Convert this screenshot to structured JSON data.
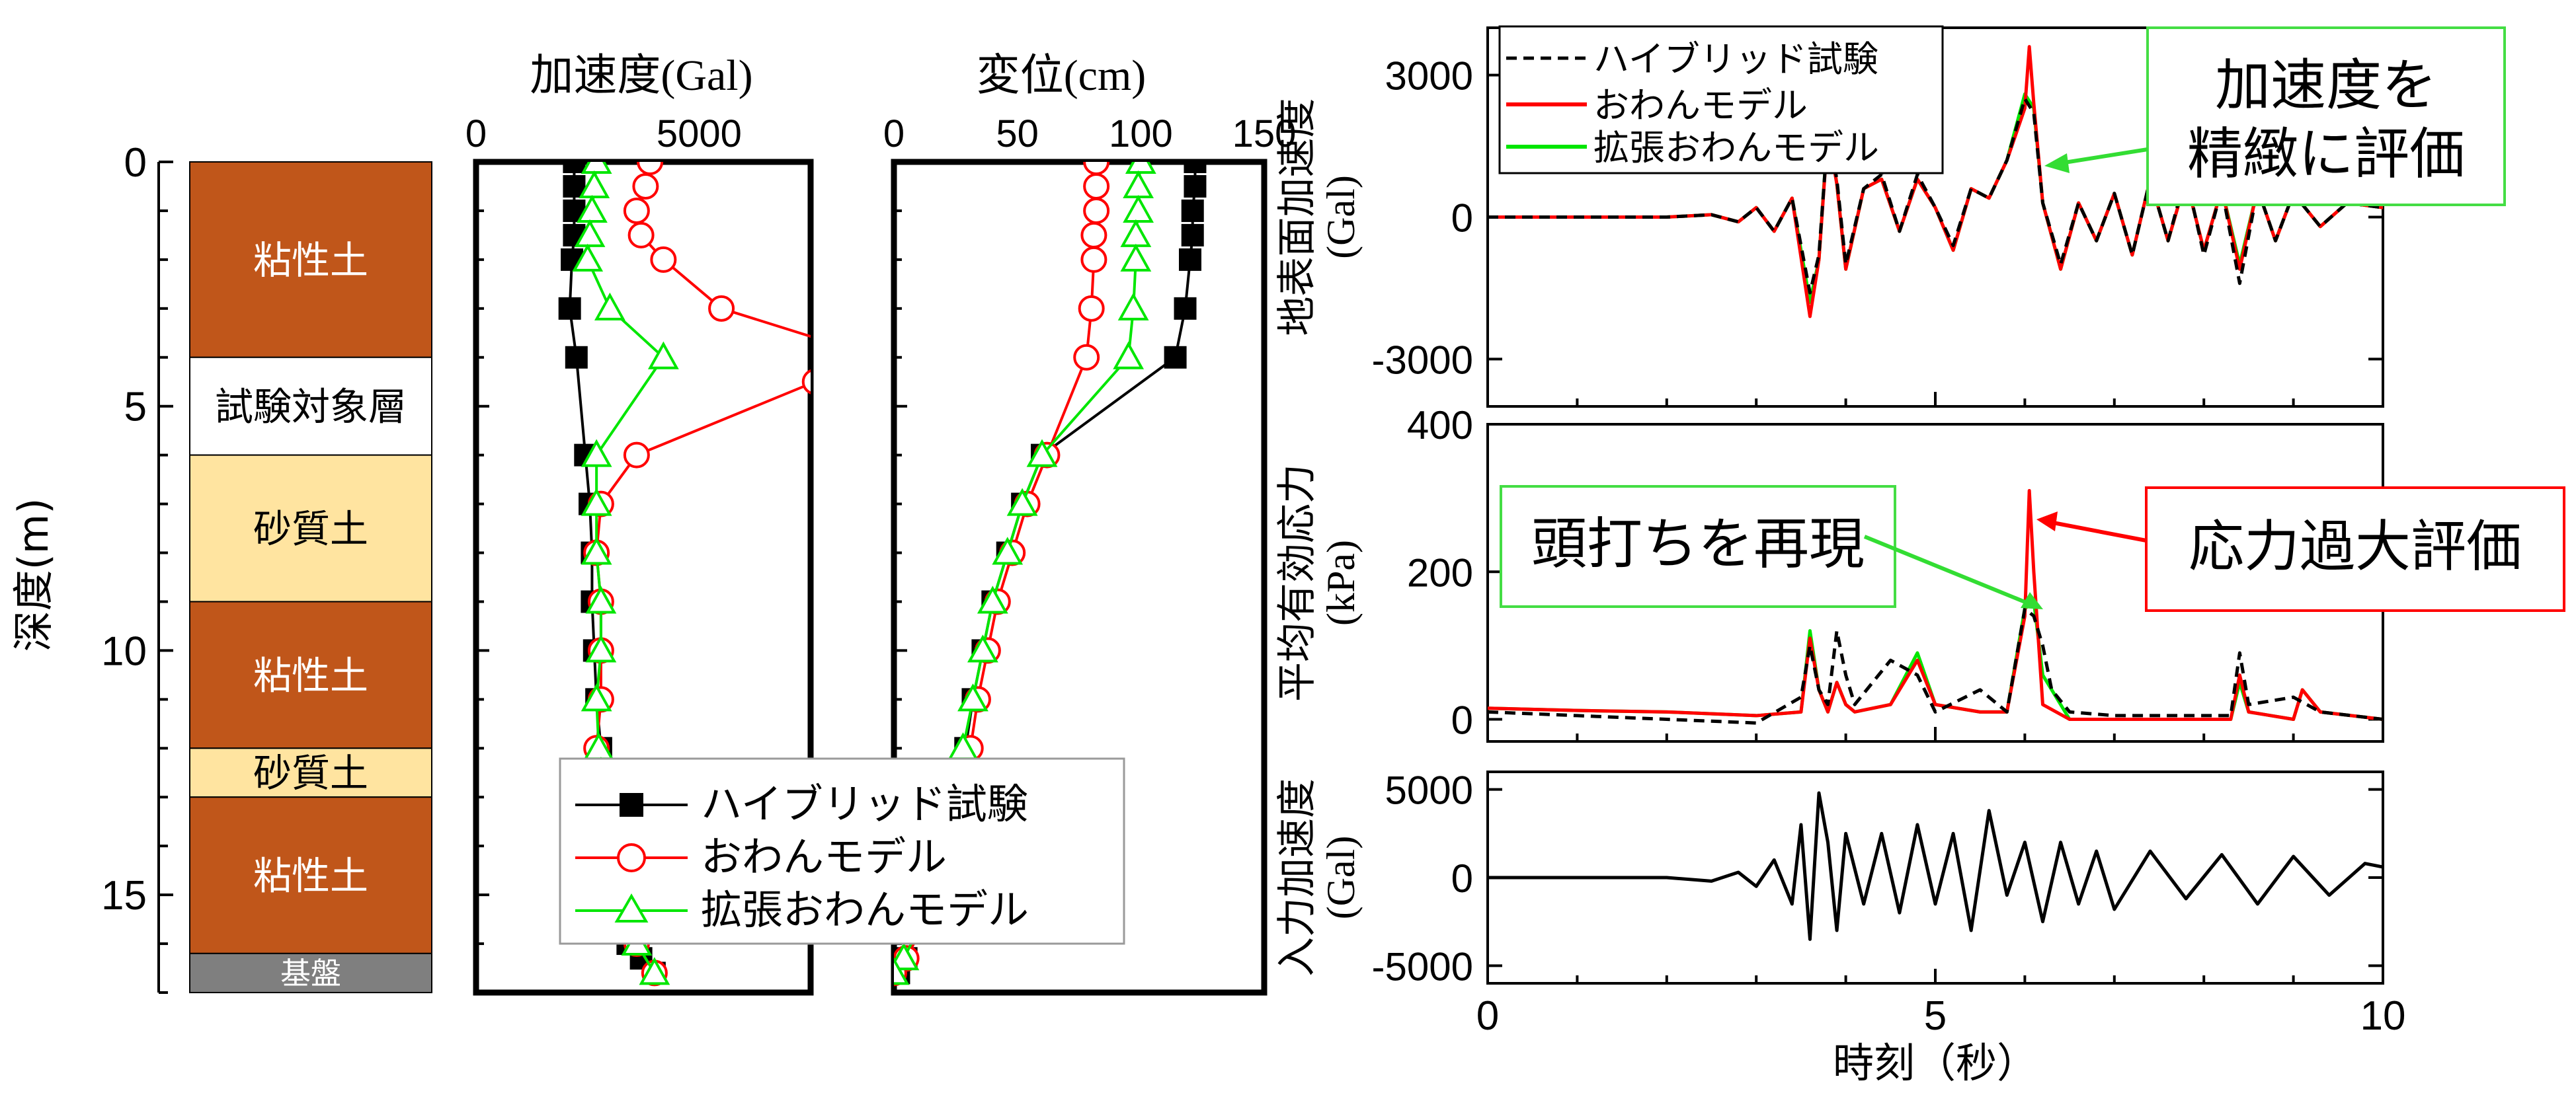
{
  "colors": {
    "hybrid": "#000000",
    "owan": "#ff0000",
    "extended": "#00e600",
    "clay": "#c0561a",
    "sand": "#ffe4a0",
    "target": "#ffffff",
    "base": "#7f7f7f",
    "callout_green_border": "#33dd33",
    "callout_red_border": "#ff0000"
  },
  "profile": {
    "depth_label": "深度(m)",
    "depth_ticks": [
      "0",
      "5",
      "10",
      "15"
    ],
    "layers": [
      {
        "name": "粘性土",
        "top": 0,
        "bottom": 4,
        "color": "#c0561a",
        "text_color": "#ffffff"
      },
      {
        "name": "試験対象層",
        "top": 4,
        "bottom": 6,
        "color": "#ffffff",
        "text_color": "#000000"
      },
      {
        "name": "砂質土",
        "top": 6,
        "bottom": 9,
        "color": "#ffe4a0",
        "text_color": "#000000"
      },
      {
        "name": "粘性土",
        "top": 9,
        "bottom": 12,
        "color": "#c0561a",
        "text_color": "#ffffff"
      },
      {
        "name": "砂質土",
        "top": 12,
        "bottom": 13,
        "color": "#ffe4a0",
        "text_color": "#000000"
      },
      {
        "name": "粘性土",
        "top": 13,
        "bottom": 16.2,
        "color": "#c0561a",
        "text_color": "#ffffff"
      },
      {
        "name": "基盤",
        "top": 16.2,
        "bottom": 17,
        "color": "#7f7f7f",
        "text_color": "#ffffff"
      }
    ]
  },
  "legend_main": {
    "hybrid": "ハイブリッド試験",
    "owan": "おわんモデル",
    "extended": "拡張おわんモデル"
  },
  "legend_top": {
    "hybrid": "ハイブリッド試験",
    "owan": "おわんモデル",
    "extended": "拡張おわんモデル"
  },
  "callouts": {
    "accel": "加速度を\n精緻に評価",
    "peak": "頭打ちを再現",
    "over": "応力過大評価"
  },
  "chart_data": [
    {
      "type": "line",
      "id": "accel_profile",
      "title": "加速度(Gal)",
      "xlabel": "加速度(Gal)",
      "ylabel": "深度(m)",
      "xlim": [
        0,
        7500
      ],
      "ylim": [
        17,
        0
      ],
      "xticks": [
        "0",
        "5000"
      ],
      "yticks": [
        0,
        5,
        10,
        15
      ],
      "series": [
        {
          "name": "ハイブリッド試験",
          "key": "hybrid",
          "marker": "square",
          "x": [
            2200,
            2200,
            2200,
            2200,
            2150,
            2100,
            2250,
            2450,
            2550,
            2600,
            2600,
            2650,
            2700,
            2800,
            2900,
            2950,
            3000,
            3100,
            3200,
            3200,
            3300,
            3400,
            3700,
            4000
          ],
          "y": [
            0,
            0.5,
            1,
            1.5,
            2,
            3,
            4,
            6,
            7,
            8,
            9,
            10,
            11,
            12,
            12.5,
            13,
            13.5,
            14,
            14.5,
            15,
            15.5,
            16,
            16.3,
            16.6
          ]
        },
        {
          "name": "おわんモデル",
          "key": "owan",
          "marker": "circle",
          "x": [
            3900,
            3800,
            3600,
            3700,
            4200,
            5500,
            7600,
            7600,
            3600,
            2800,
            2700,
            2800,
            2800,
            2800,
            2700,
            2750,
            2800,
            2900,
            3000,
            3050,
            3150,
            3300,
            3600,
            4000
          ],
          "y": [
            0,
            0.5,
            1,
            1.5,
            2,
            3,
            3.6,
            4.5,
            6,
            7,
            8,
            9,
            10,
            11,
            12,
            12.5,
            13,
            13.5,
            14,
            14.5,
            15,
            15.5,
            16,
            16.6
          ]
        },
        {
          "name": "拡張おわんモデル",
          "key": "extended",
          "marker": "triangle",
          "x": [
            2700,
            2650,
            2600,
            2550,
            2500,
            3000,
            4200,
            2700,
            2700,
            2700,
            2800,
            2800,
            2700,
            2750,
            2800,
            2900,
            3000,
            3050,
            3150,
            3300,
            3600,
            4000
          ],
          "y": [
            0,
            0.5,
            1,
            1.5,
            2,
            3,
            4,
            6,
            7,
            8,
            9,
            10,
            11,
            12,
            12.5,
            13,
            13.5,
            14,
            14.5,
            15,
            16,
            16.6
          ]
        }
      ]
    },
    {
      "type": "line",
      "id": "disp_profile",
      "title": "変位(cm)",
      "xlabel": "変位(cm)",
      "ylabel": "深度(m)",
      "xlim": [
        0,
        150
      ],
      "ylim": [
        17,
        0
      ],
      "xticks": [
        "0",
        "50",
        "100",
        "150"
      ],
      "yticks": [
        0,
        5,
        10,
        15
      ],
      "series": [
        {
          "name": "ハイブリッド試験",
          "key": "hybrid",
          "marker": "square",
          "x": [
            122,
            122,
            121,
            121,
            120,
            118,
            114,
            60,
            52,
            46,
            40,
            36,
            32,
            29,
            25,
            20,
            15,
            10,
            5,
            2
          ],
          "y": [
            0,
            0.5,
            1,
            1.5,
            2,
            3,
            4,
            6,
            7,
            8,
            9,
            10,
            11,
            12,
            13,
            14,
            15,
            15.8,
            16.3,
            16.6
          ]
        },
        {
          "name": "おわんモデル",
          "key": "owan",
          "marker": "circle",
          "x": [
            82,
            82,
            82,
            81,
            81,
            80,
            78,
            62,
            54,
            48,
            42,
            38,
            34,
            31,
            26,
            21,
            15,
            10,
            5,
            0
          ],
          "y": [
            0,
            0.5,
            1,
            1.5,
            2,
            3,
            4,
            6,
            7,
            8,
            9,
            10,
            11,
            12,
            13,
            14,
            15,
            15.8,
            16.3,
            16.6
          ]
        },
        {
          "name": "拡張おわんモデル",
          "key": "extended",
          "marker": "triangle",
          "x": [
            100,
            99,
            99,
            98,
            98,
            97,
            95,
            60,
            52,
            46,
            40,
            36,
            32,
            28,
            24,
            19,
            14,
            9,
            4,
            0
          ],
          "y": [
            0,
            0.5,
            1,
            1.5,
            2,
            3,
            4,
            6,
            7,
            8,
            9,
            10,
            11,
            12,
            13,
            14,
            15,
            15.8,
            16.3,
            16.6
          ]
        }
      ]
    },
    {
      "type": "line",
      "id": "surface_accel",
      "title": "地表面加速度 (Gal)",
      "ylabel": "地表面加速度\n(Gal)",
      "xlim": [
        0,
        10
      ],
      "ylim": [
        -4000,
        4000
      ],
      "yticks": [
        3000,
        0,
        -3000
      ],
      "ytick_labels": [
        "3000",
        "0",
        "-3000"
      ],
      "legend": "top-left",
      "series": [
        {
          "name": "ハイブリッド試験",
          "key": "hybrid",
          "dash": true,
          "x": [
            0,
            1,
            2,
            2.5,
            2.8,
            3.0,
            3.2,
            3.4,
            3.6,
            3.7,
            3.8,
            3.9,
            4.0,
            4.2,
            4.4,
            4.6,
            4.8,
            5.0,
            5.2,
            5.4,
            5.6,
            5.8,
            6.0,
            6.1,
            6.2,
            6.4,
            6.6,
            6.8,
            7.0,
            7.2,
            7.4,
            7.6,
            7.8,
            8.0,
            8.2,
            8.4,
            8.6,
            8.8,
            9.0,
            9.3,
            9.6,
            10.0
          ],
          "y": [
            0,
            0,
            0,
            50,
            -100,
            200,
            -300,
            400,
            -1600,
            -800,
            1800,
            800,
            -1000,
            600,
            900,
            -300,
            900,
            200,
            -600,
            600,
            400,
            1200,
            2500,
            2200,
            300,
            -1000,
            300,
            -500,
            500,
            -800,
            800,
            -500,
            900,
            -800,
            600,
            -1400,
            600,
            -500,
            500,
            -200,
            300,
            200
          ]
        },
        {
          "name": "おわんモデル",
          "key": "owan",
          "x": [
            0,
            1,
            2,
            2.5,
            2.8,
            3.0,
            3.2,
            3.4,
            3.6,
            3.7,
            3.8,
            3.9,
            4.0,
            4.2,
            4.4,
            4.6,
            4.8,
            5.0,
            5.2,
            5.4,
            5.6,
            5.8,
            6.0,
            6.05,
            6.1,
            6.2,
            6.4,
            6.6,
            6.8,
            7.0,
            7.2,
            7.4,
            7.6,
            7.8,
            8.0,
            8.2,
            8.4,
            8.6,
            8.8,
            9.0,
            9.3,
            9.6,
            10.0
          ],
          "y": [
            0,
            0,
            0,
            50,
            -100,
            200,
            -300,
            400,
            -2100,
            -900,
            1800,
            700,
            -1100,
            600,
            800,
            -300,
            800,
            200,
            -700,
            600,
            400,
            1200,
            2300,
            3600,
            2400,
            300,
            -1100,
            300,
            -500,
            500,
            -800,
            800,
            -500,
            800,
            -700,
            600,
            -1100,
            600,
            -500,
            500,
            -200,
            300,
            200
          ]
        },
        {
          "name": "拡張おわんモデル",
          "key": "extended",
          "x": [
            0,
            1,
            2,
            2.5,
            2.8,
            3.0,
            3.2,
            3.4,
            3.6,
            3.7,
            3.8,
            3.9,
            4.0,
            4.2,
            4.4,
            4.6,
            4.8,
            5.0,
            5.2,
            5.4,
            5.6,
            5.8,
            6.0,
            6.1,
            6.2,
            6.4,
            6.6,
            6.8,
            7.0,
            7.2,
            7.4,
            7.6,
            7.8,
            8.0,
            8.2,
            8.4,
            8.6,
            8.8,
            9.0,
            9.3,
            9.6,
            10.0
          ],
          "y": [
            0,
            0,
            0,
            50,
            -100,
            200,
            -300,
            400,
            -1800,
            -900,
            1900,
            700,
            -1100,
            600,
            800,
            -300,
            800,
            200,
            -700,
            600,
            400,
            1200,
            2600,
            2300,
            300,
            -1100,
            300,
            -500,
            500,
            -800,
            800,
            -500,
            800,
            -700,
            600,
            -1000,
            600,
            -500,
            500,
            -200,
            300,
            200
          ]
        }
      ]
    },
    {
      "type": "line",
      "id": "mean_stress",
      "title": "平均有効応力 (kPa)",
      "ylabel": "平均有効応力\n(kPa)",
      "xlim": [
        0,
        10
      ],
      "ylim": [
        -30,
        400
      ],
      "yticks": [
        400,
        200,
        0
      ],
      "ytick_labels": [
        "400",
        "200",
        "0"
      ],
      "series": [
        {
          "name": "ハイブリッド試験",
          "key": "hybrid",
          "dash": true,
          "x": [
            0,
            1,
            2,
            3,
            3.5,
            3.6,
            3.7,
            3.8,
            3.9,
            4.0,
            4.1,
            4.5,
            4.8,
            5.0,
            5.5,
            5.8,
            6.0,
            6.1,
            6.2,
            6.3,
            6.5,
            7.0,
            8.0,
            8.3,
            8.4,
            8.5,
            9.0,
            9.3,
            10.0
          ],
          "y": [
            10,
            5,
            0,
            -5,
            30,
            100,
            40,
            20,
            120,
            60,
            20,
            80,
            60,
            10,
            40,
            10,
            150,
            140,
            100,
            40,
            10,
            5,
            5,
            5,
            90,
            20,
            30,
            10,
            0
          ]
        },
        {
          "name": "おわんモデル",
          "key": "owan",
          "x": [
            0,
            1,
            2,
            3,
            3.5,
            3.6,
            3.7,
            3.8,
            3.9,
            4.0,
            4.1,
            4.5,
            4.8,
            5.0,
            5.5,
            5.8,
            6.0,
            6.05,
            6.1,
            6.2,
            6.5,
            7.0,
            8.0,
            8.3,
            8.4,
            8.5,
            9.0,
            9.1,
            9.3,
            10.0
          ],
          "y": [
            15,
            12,
            10,
            5,
            10,
            110,
            40,
            10,
            50,
            20,
            10,
            20,
            80,
            20,
            10,
            10,
            140,
            310,
            200,
            20,
            0,
            0,
            0,
            0,
            60,
            10,
            0,
            40,
            10,
            0
          ]
        },
        {
          "name": "拡張おわんモデル",
          "key": "extended",
          "x": [
            0,
            1,
            2,
            3,
            3.5,
            3.6,
            3.7,
            3.8,
            3.9,
            4.0,
            4.1,
            4.5,
            4.8,
            5.0,
            5.5,
            5.8,
            6.0,
            6.1,
            6.2,
            6.5,
            7.0,
            8.0,
            8.3,
            8.4,
            8.5,
            9.0,
            9.1,
            9.3,
            10.0
          ],
          "y": [
            15,
            12,
            10,
            5,
            10,
            120,
            40,
            10,
            50,
            20,
            10,
            20,
            90,
            20,
            10,
            10,
            150,
            160,
            60,
            0,
            0,
            0,
            0,
            50,
            10,
            0,
            40,
            10,
            0
          ]
        }
      ]
    },
    {
      "type": "line",
      "id": "input_accel",
      "title": "入力加速度 (Gal)",
      "ylabel": "入力加速度\n(Gal)",
      "xlabel": "時刻（秒）",
      "xlim": [
        0,
        10
      ],
      "ylim": [
        -6000,
        6000
      ],
      "xticks": [
        0,
        5,
        10
      ],
      "yticks": [
        5000,
        0,
        -5000
      ],
      "ytick_labels": [
        "5000",
        "0",
        "-5000"
      ],
      "series": [
        {
          "name": "入力加速度",
          "key": "hybrid",
          "x": [
            0,
            1,
            2,
            2.5,
            2.8,
            3.0,
            3.2,
            3.4,
            3.5,
            3.6,
            3.7,
            3.8,
            3.9,
            4.0,
            4.2,
            4.4,
            4.6,
            4.8,
            5.0,
            5.2,
            5.4,
            5.6,
            5.8,
            6.0,
            6.2,
            6.4,
            6.6,
            6.8,
            7.0,
            7.4,
            7.8,
            8.2,
            8.6,
            9.0,
            9.4,
            9.8,
            10.0
          ],
          "y": [
            0,
            0,
            0,
            -200,
            300,
            -500,
            1000,
            -1500,
            3000,
            -3500,
            4800,
            2000,
            -3000,
            2500,
            -1500,
            2500,
            -2000,
            3000,
            -1500,
            2500,
            -3000,
            3800,
            -1000,
            2000,
            -2500,
            2000,
            -1500,
            1500,
            -1800,
            1500,
            -1200,
            1300,
            -1500,
            1200,
            -1000,
            800,
            600
          ]
        }
      ]
    }
  ]
}
